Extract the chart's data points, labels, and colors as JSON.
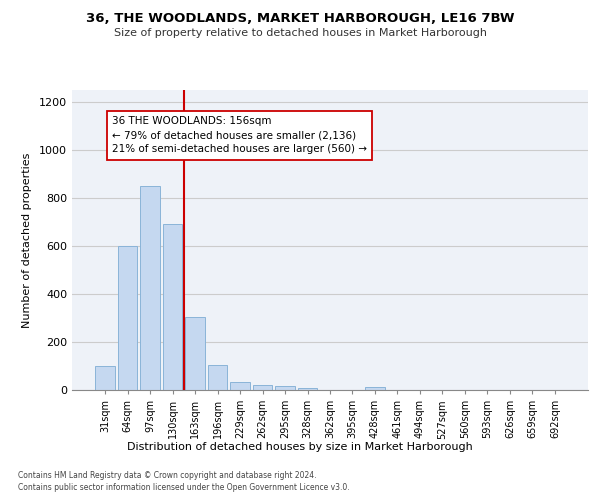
{
  "title": "36, THE WOODLANDS, MARKET HARBOROUGH, LE16 7BW",
  "subtitle": "Size of property relative to detached houses in Market Harborough",
  "xlabel": "Distribution of detached houses by size in Market Harborough",
  "ylabel": "Number of detached properties",
  "bar_color": "#c5d8f0",
  "bar_edge_color": "#8ab4d8",
  "categories": [
    "31sqm",
    "64sqm",
    "97sqm",
    "130sqm",
    "163sqm",
    "196sqm",
    "229sqm",
    "262sqm",
    "295sqm",
    "328sqm",
    "362sqm",
    "395sqm",
    "428sqm",
    "461sqm",
    "494sqm",
    "527sqm",
    "560sqm",
    "593sqm",
    "626sqm",
    "659sqm",
    "692sqm"
  ],
  "values": [
    100,
    600,
    850,
    690,
    305,
    105,
    32,
    22,
    15,
    8,
    0,
    0,
    12,
    0,
    0,
    0,
    0,
    0,
    0,
    0,
    0
  ],
  "annotation_text": "36 THE WOODLANDS: 156sqm\n← 79% of detached houses are smaller (2,136)\n21% of semi-detached houses are larger (560) →",
  "annotation_box_color": "#ffffff",
  "annotation_border_color": "#cc0000",
  "red_line_color": "#cc0000",
  "ylim": [
    0,
    1250
  ],
  "yticks": [
    0,
    200,
    400,
    600,
    800,
    1000,
    1200
  ],
  "footnote1": "Contains HM Land Registry data © Crown copyright and database right 2024.",
  "footnote2": "Contains public sector information licensed under the Open Government Licence v3.0.",
  "grid_color": "#cccccc",
  "background_color": "#eef2f8"
}
